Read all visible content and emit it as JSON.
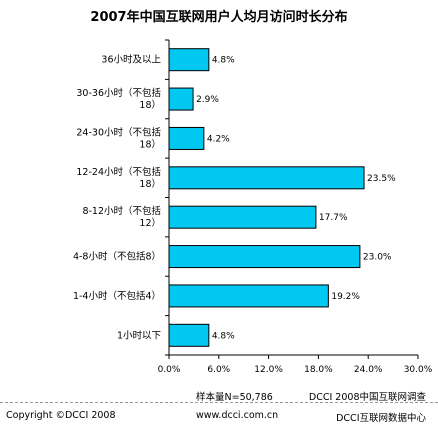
{
  "chart_data": {
    "type": "bar",
    "orientation": "horizontal",
    "title": "2007年中国互联网用户人均月访问时长分布",
    "categories": [
      [
        "36小时及以上"
      ],
      [
        "30-36小时（不包括",
        "18）"
      ],
      [
        "24-30小时（不包括",
        "18）"
      ],
      [
        "12-24小时（不包括",
        "18）"
      ],
      [
        "8-12小时（不包括",
        "12）"
      ],
      [
        "4-8小时（不包括8）"
      ],
      [
        "1-4小时（不包括4）"
      ],
      [
        "1小时以下"
      ]
    ],
    "values": [
      4.8,
      2.9,
      4.2,
      23.5,
      17.7,
      23.0,
      19.2,
      4.8
    ],
    "value_labels": [
      "4.8%",
      "2.9%",
      "4.2%",
      "23.5%",
      "17.7%",
      "23.0%",
      "19.2%",
      "4.8%"
    ],
    "xlim": [
      0,
      30
    ],
    "xticks": [
      "0.0%",
      "6.0%",
      "12.0%",
      "18.0%",
      "24.0%",
      "30.0%"
    ],
    "bar_color": "#00c8f0",
    "grid": false
  },
  "footer": {
    "sample": "样本量N=50,786",
    "source1": "DCCI 2008中国互联网调查",
    "copyright": "Copyright ©DCCI 2008",
    "url": "www.dcci.com.cn",
    "source2": "DCCI互联网数据中心"
  }
}
